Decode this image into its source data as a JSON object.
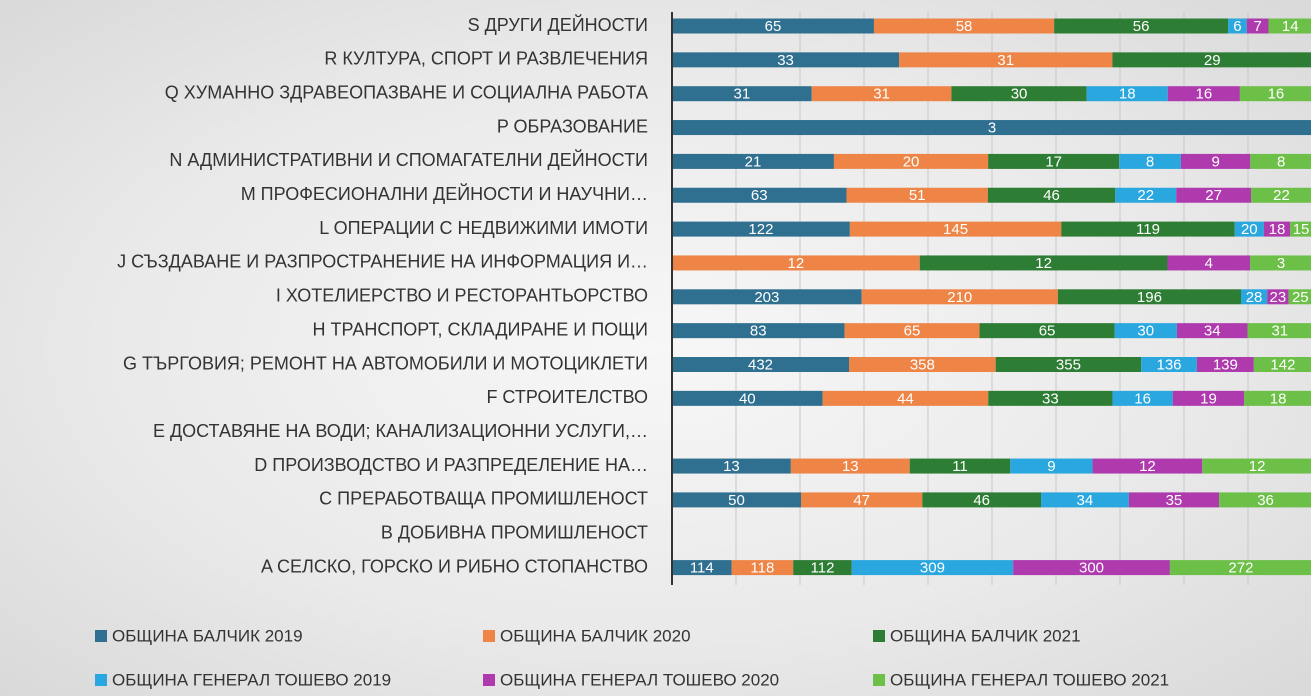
{
  "chart_data": {
    "type": "stacked-bar-100",
    "categories": [
      "S ДРУГИ ДЕЙНОСТИ",
      "R КУЛТУРА, СПОРТ И РАЗВЛЕЧЕНИЯ",
      "Q ХУМАННО ЗДРАВЕОПАЗВАНЕ И СОЦИАЛНА РАБОТА",
      "P ОБРАЗОВАНИЕ",
      "N АДМИНИСТРАТИВНИ И СПОМАГАТЕЛНИ ДЕЙНОСТИ",
      "M ПРОФЕСИОНАЛНИ ДЕЙНОСТИ И НАУЧНИ…",
      "L ОПЕРАЦИИ С НЕДВИЖИМИ ИМОТИ",
      "J СЪЗДАВАНЕ И РАЗПРОСТРАНЕНИЕ НА ИНФОРМАЦИЯ И…",
      "I ХОТЕЛИЕРСТВО И РЕСТОРАНТЬОРСТВО",
      "H ТРАНСПОРТ, СКЛАДИРАНЕ И ПОЩИ",
      "G ТЪРГОВИЯ; РЕМОНТ НА АВТОМОБИЛИ И МОТОЦИКЛЕТИ",
      "F СТРОИТЕЛСТВО",
      "E ДОСТАВЯНЕ НА ВОДИ; КАНАЛИЗАЦИОННИ УСЛУГИ,…",
      "D ПРОИЗВОДСТВО И РАЗПРЕДЕЛЕНИЕ НА…",
      "C ПРЕРАБОТВАЩА ПРОМИШЛЕНОСТ",
      "B ДОБИВНА ПРОМИШЛЕНОСТ",
      "A СЕЛСКО, ГОРСКО И РИБНО СТОПАНСТВО"
    ],
    "series": [
      {
        "name": "ОБЩИНА БАЛЧИК 2019",
        "color": "#2f6f8f",
        "values": [
          65,
          33,
          31,
          3,
          21,
          63,
          122,
          null,
          203,
          83,
          432,
          40,
          null,
          13,
          50,
          null,
          114
        ]
      },
      {
        "name": "ОБЩИНА БАЛЧИК 2020",
        "color": "#ee8547",
        "values": [
          58,
          31,
          31,
          null,
          20,
          51,
          145,
          12,
          210,
          65,
          358,
          44,
          null,
          13,
          47,
          null,
          118
        ]
      },
      {
        "name": "ОБЩИНА БАЛЧИК 2021",
        "color": "#2e7d34",
        "values": [
          56,
          29,
          30,
          null,
          17,
          46,
          119,
          12,
          196,
          65,
          355,
          33,
          null,
          11,
          46,
          null,
          112
        ]
      },
      {
        "name": "ОБЩИНА ГЕНЕРАЛ ТОШЕВО 2019",
        "color": "#2aa7de",
        "values": [
          6,
          null,
          18,
          null,
          8,
          22,
          20,
          null,
          28,
          30,
          136,
          16,
          null,
          9,
          34,
          null,
          309
        ]
      },
      {
        "name": "ОБЩИНА ГЕНЕРАЛ ТОШЕВО 2020",
        "color": "#ae3aae",
        "values": [
          7,
          null,
          16,
          null,
          9,
          27,
          18,
          4,
          23,
          34,
          139,
          19,
          null,
          12,
          35,
          null,
          300
        ]
      },
      {
        "name": "ОБЩИНА ГЕНЕРАЛ ТОШЕВО 2021",
        "color": "#6cbf47",
        "values": [
          14,
          null,
          16,
          null,
          8,
          22,
          15,
          3,
          25,
          31,
          142,
          18,
          null,
          12,
          36,
          null,
          272
        ]
      }
    ],
    "xlim": [
      0,
      100
    ],
    "xticks": [
      0,
      10,
      20,
      30,
      40,
      50,
      60,
      70,
      80,
      90,
      100
    ],
    "grid": true,
    "legend": "bottom"
  }
}
